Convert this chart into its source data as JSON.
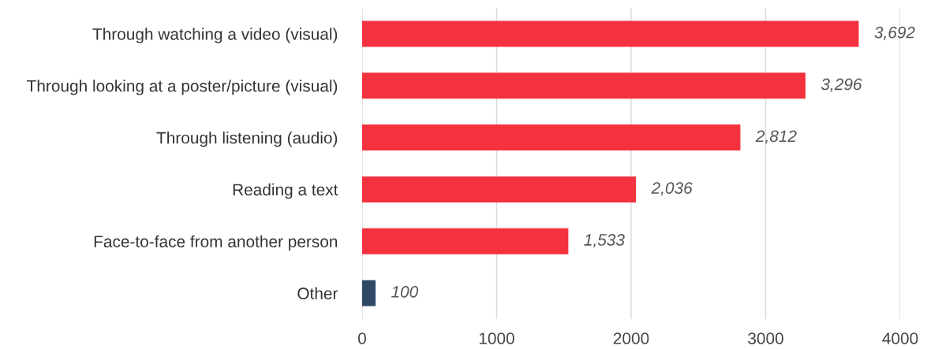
{
  "chart_data": {
    "type": "bar",
    "orientation": "horizontal",
    "categories": [
      "Through watching a video (visual)",
      "Through looking at a poster/picture (visual)",
      "Through listening (audio)",
      "Reading a text",
      "Face-to-face from another person",
      "Other"
    ],
    "values": [
      3692,
      3296,
      2812,
      2036,
      1533,
      100
    ],
    "colors": [
      "#f4323f",
      "#f4323f",
      "#f4323f",
      "#f4323f",
      "#f4323f",
      "#2e4866"
    ],
    "value_labels": [
      "3,692",
      "3,296",
      "2,812",
      "2,036",
      "1,533",
      "100"
    ],
    "xlim": [
      0,
      4000
    ],
    "xticks": [
      0,
      1000,
      2000,
      3000,
      4000
    ],
    "grid": "x"
  }
}
